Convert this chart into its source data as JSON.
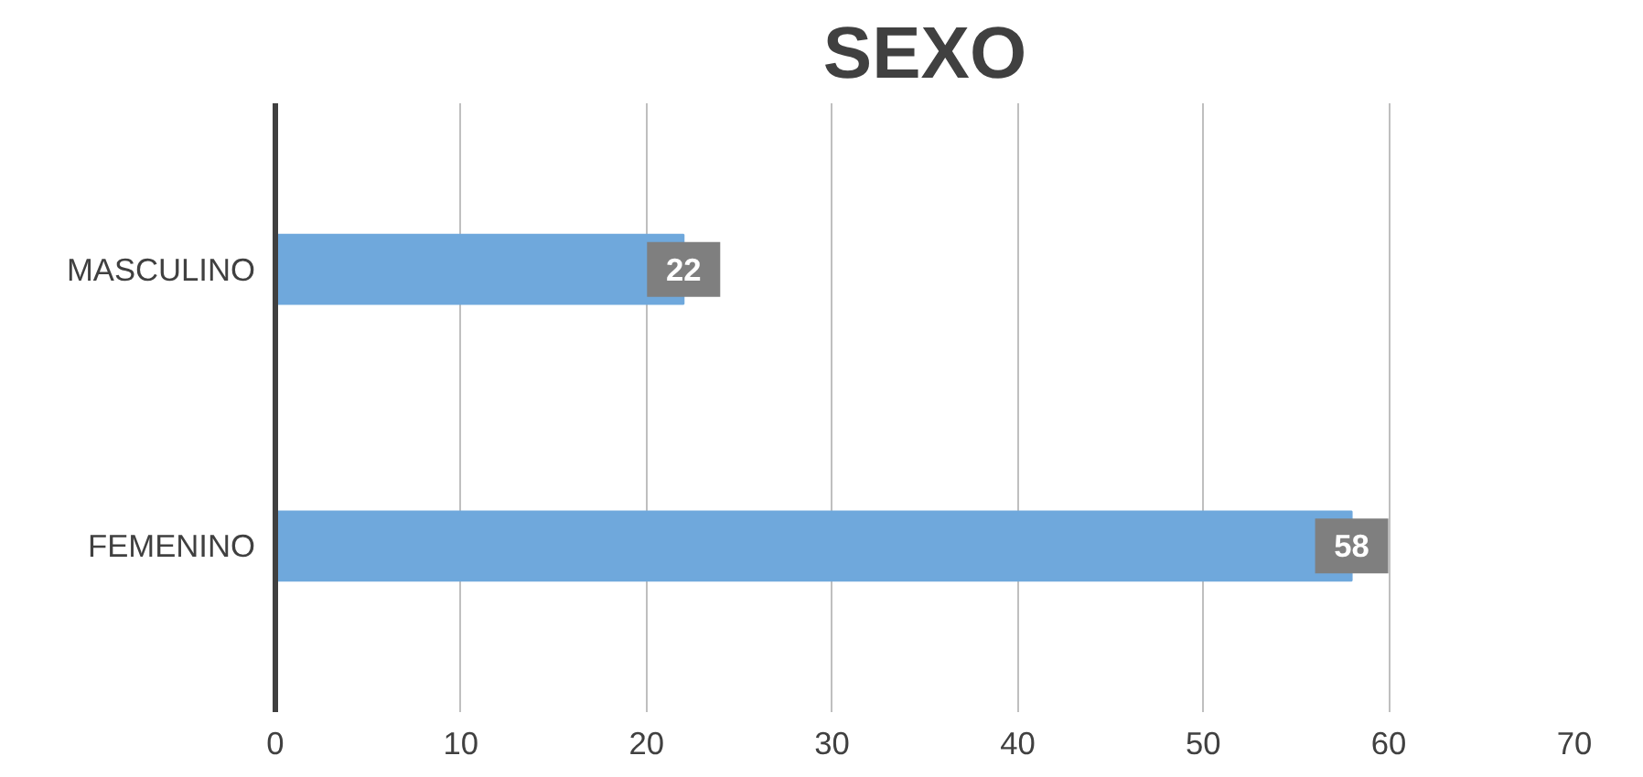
{
  "chart_data": {
    "type": "bar",
    "orientation": "horizontal",
    "title": "SEXO",
    "categories": [
      "MASCULINO",
      "FEMENINO"
    ],
    "values": [
      22,
      58
    ],
    "color": "#6fa8dc",
    "xlim": [
      0,
      70
    ],
    "xticks": [
      0,
      10,
      20,
      30,
      40,
      50,
      60,
      70
    ],
    "grid": "x",
    "data_labels": true
  }
}
